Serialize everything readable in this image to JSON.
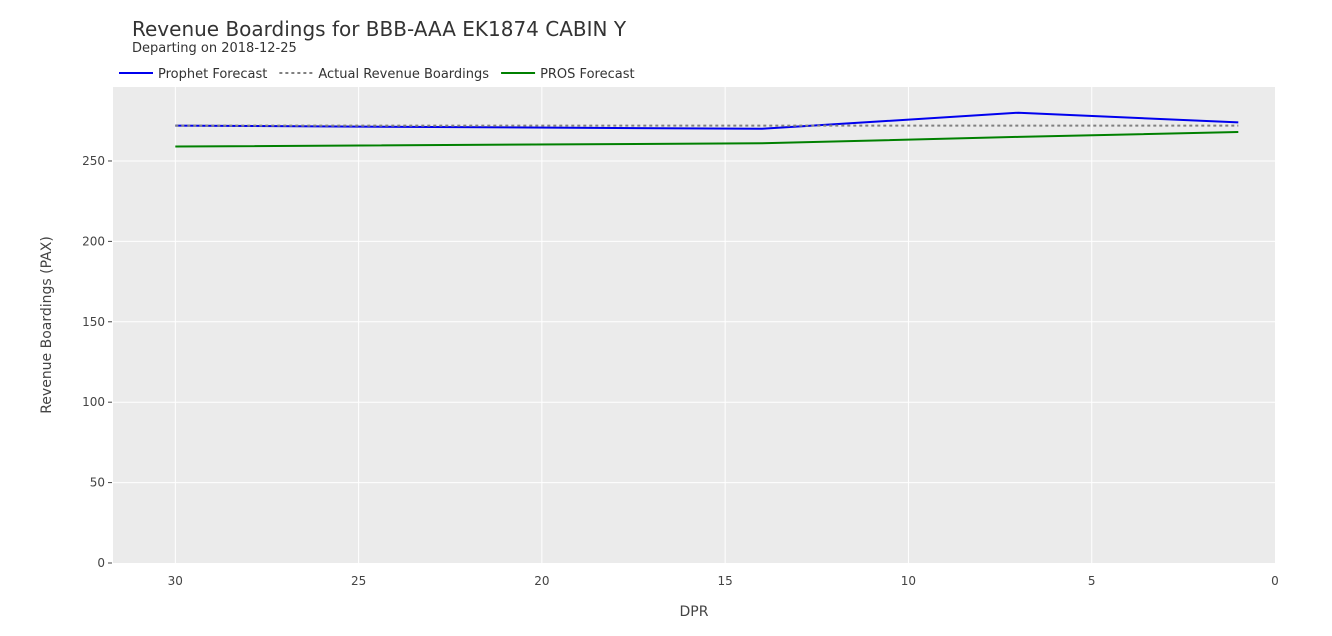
{
  "chart_data": {
    "type": "line",
    "title": "Revenue Boardings for BBB-AAA EK1874 CABIN Y",
    "subtitle": "Departing on 2018-12-25",
    "xlabel": "DPR",
    "ylabel": "Revenue Boardings (PAX)",
    "xlim": [
      31.7,
      0
    ],
    "ylim": [
      0,
      296
    ],
    "x_ticks": [
      30,
      25,
      20,
      15,
      10,
      5,
      0
    ],
    "y_ticks": [
      0,
      50,
      100,
      150,
      200,
      250
    ],
    "grid": true,
    "legend_position": "top-left",
    "plot_background": "#ebebeb",
    "series": [
      {
        "name": "Prophet Forecast",
        "color": "#0000ee",
        "dash": "solid",
        "x": [
          30,
          14,
          7,
          1
        ],
        "y": [
          272,
          270,
          280,
          274
        ]
      },
      {
        "name": "Actual Revenue Boardings",
        "color": "#808080",
        "dash": "dotted",
        "x": [
          30,
          1
        ],
        "y": [
          272,
          272
        ]
      },
      {
        "name": "PROS Forecast",
        "color": "#008000",
        "dash": "solid",
        "x": [
          30,
          14,
          7,
          1
        ],
        "y": [
          259,
          261,
          265,
          268
        ]
      }
    ]
  }
}
